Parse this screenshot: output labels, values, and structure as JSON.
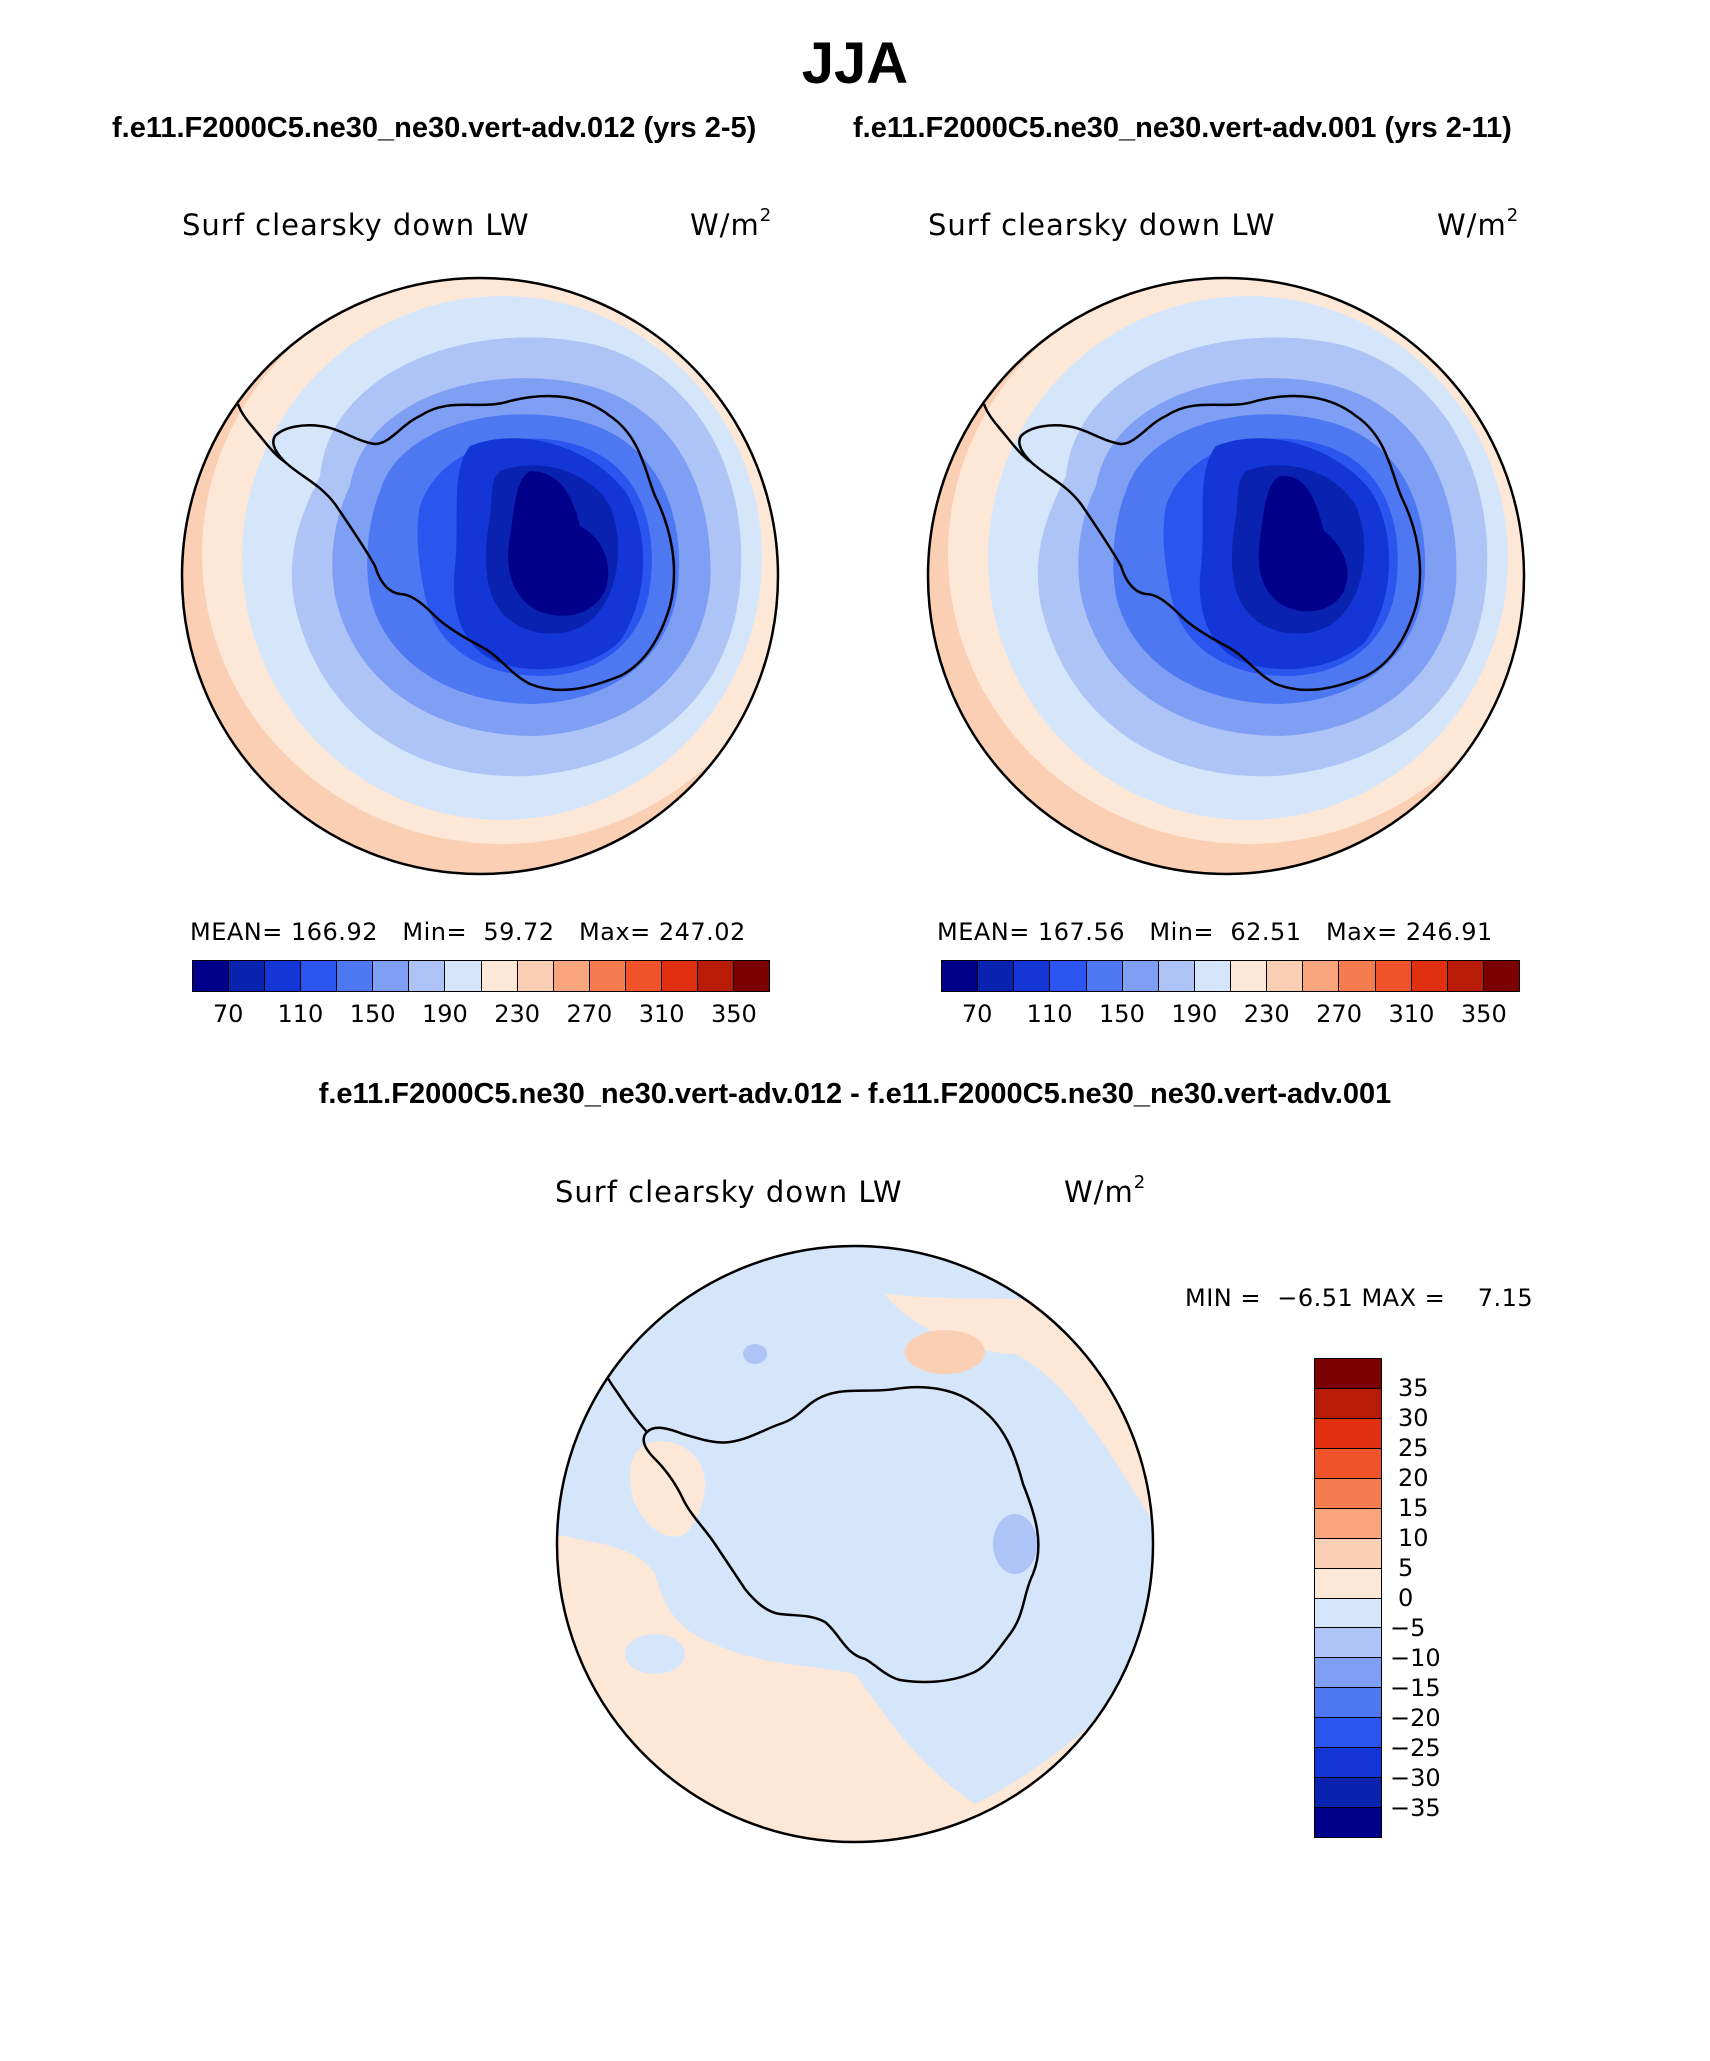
{
  "title": "JJA",
  "case1_title": "f.e11.F2000C5.ne30_ne30.vert-adv.012 (yrs 2-5)",
  "case2_title": "f.e11.F2000C5.ne30_ne30.vert-adv.001 (yrs 2-11)",
  "diff_title": "f.e11.F2000C5.ne30_ne30.vert-adv.012 - f.e11.F2000C5.ne30_ne30.vert-adv.001",
  "variable_label": "Surf clearsky down LW",
  "units_base": "W/m",
  "units_exp": "2",
  "panel1": {
    "mean_label": "MEAN=",
    "mean": "166.92",
    "min_label": "Min=",
    "min": "59.72",
    "max_label": "Max=",
    "max": "247.02"
  },
  "panel2": {
    "mean_label": "MEAN=",
    "mean": "167.56",
    "min_label": "Min=",
    "min": "62.51",
    "max_label": "Max=",
    "max": "246.91"
  },
  "diff_panel": {
    "min_label": "MIN =",
    "min": "−6.51",
    "max_label": "MAX =",
    "max": "7.15"
  },
  "abs_colorbar": {
    "colors": [
      "#00008b",
      "#0a22b0",
      "#1536d6",
      "#2a55ee",
      "#4d78f2",
      "#7f9ff4",
      "#aec4f6",
      "#d6e6fa",
      "#fde8d8",
      "#fbcfb3",
      "#f8a57d",
      "#f47c4f",
      "#f0532a",
      "#e0300f",
      "#b81c06",
      "#7d0000"
    ],
    "ticks": [
      "70",
      "110",
      "150",
      "190",
      "230",
      "270",
      "310",
      "350"
    ]
  },
  "diff_colorbar": {
    "colors": [
      "#7d0000",
      "#b81c06",
      "#e0300f",
      "#f0532a",
      "#f47c4f",
      "#f8a57d",
      "#fbcfb3",
      "#fde8d8",
      "#d6e6fa",
      "#aec4f6",
      "#7f9ff4",
      "#4d78f2",
      "#2a55ee",
      "#1536d6",
      "#0a22b0",
      "#00008b"
    ],
    "ticks": [
      "35",
      "30",
      "25",
      "20",
      "15",
      "10",
      "5",
      "0",
      "−5",
      "−10",
      "−15",
      "−20",
      "−25",
      "−30",
      "−35"
    ]
  }
}
